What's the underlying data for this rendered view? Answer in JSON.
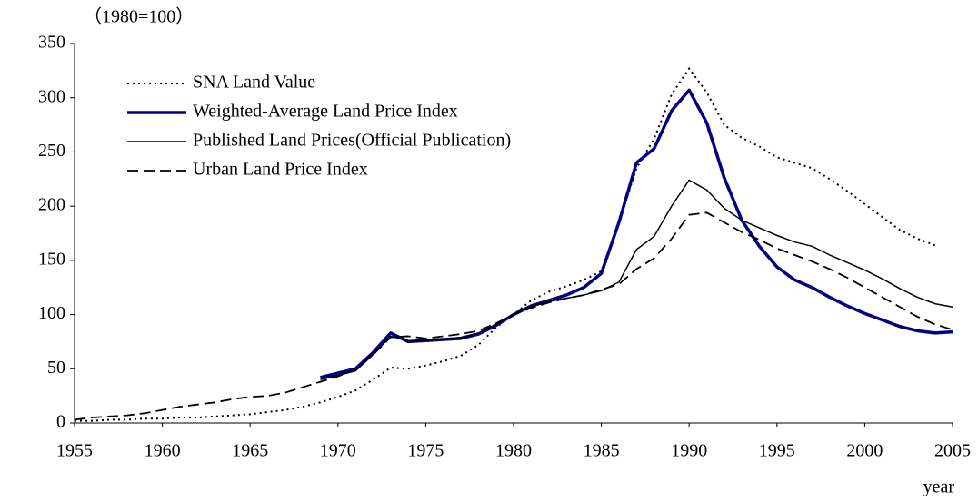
{
  "chart_data": {
    "type": "line",
    "ylabel": "（1980=100）",
    "xlabel": "year",
    "x": [
      1955,
      1956,
      1957,
      1958,
      1959,
      1960,
      1961,
      1962,
      1963,
      1964,
      1965,
      1966,
      1967,
      1968,
      1969,
      1970,
      1971,
      1972,
      1973,
      1974,
      1975,
      1976,
      1977,
      1978,
      1979,
      1980,
      1981,
      1982,
      1983,
      1984,
      1985,
      1986,
      1987,
      1988,
      1989,
      1990,
      1991,
      1992,
      1993,
      1994,
      1995,
      1996,
      1997,
      1998,
      1999,
      2000,
      2001,
      2002,
      2003,
      2004,
      2005
    ],
    "series": [
      {
        "name": "SNA Land Value",
        "color": "#000000",
        "style": "dotted",
        "linewidth": 2,
        "values": [
          2,
          2,
          3,
          3,
          4,
          4,
          5,
          5,
          6,
          7,
          8,
          10,
          12,
          15,
          19,
          24,
          30,
          40,
          51,
          50,
          53,
          57,
          62,
          72,
          88,
          100,
          113,
          121,
          126,
          132,
          140,
          185,
          235,
          262,
          303,
          327,
          305,
          275,
          263,
          255,
          245,
          240,
          235,
          225,
          214,
          202,
          190,
          178,
          170,
          164,
          null
        ]
      },
      {
        "name": "Weighted-Average Land Price Index",
        "color": "#000080",
        "style": "solid",
        "linewidth": 3.5,
        "values": [
          null,
          null,
          null,
          null,
          null,
          null,
          null,
          null,
          null,
          null,
          null,
          null,
          null,
          null,
          42,
          46,
          50,
          65,
          83,
          75,
          76,
          77,
          78,
          82,
          90,
          100,
          108,
          113,
          118,
          125,
          138,
          185,
          240,
          253,
          288,
          307,
          277,
          226,
          187,
          163,
          144,
          132,
          125,
          116,
          108,
          101,
          95,
          89,
          85,
          83,
          84
        ]
      },
      {
        "name": "Published Land Prices(Official Publication)",
        "color": "#000000",
        "style": "solid",
        "linewidth": 1.5,
        "values": [
          null,
          null,
          null,
          null,
          null,
          null,
          null,
          null,
          null,
          null,
          null,
          null,
          null,
          null,
          40,
          44,
          48,
          63,
          80,
          76,
          76,
          77,
          79,
          83,
          91,
          100,
          107,
          112,
          115,
          118,
          122,
          130,
          160,
          172,
          200,
          224,
          215,
          198,
          187,
          180,
          173,
          167,
          163,
          155,
          148,
          141,
          133,
          124,
          116,
          110,
          107
        ]
      },
      {
        "name": "Urban Land Price Index",
        "color": "#000000",
        "style": "dashed",
        "linewidth": 1.8,
        "values": [
          3,
          5,
          6,
          7,
          9,
          12,
          15,
          17,
          19,
          22,
          24,
          25,
          28,
          33,
          38,
          43,
          49,
          63,
          79,
          80,
          78,
          80,
          82,
          85,
          92,
          100,
          106,
          111,
          115,
          118,
          123,
          128,
          142,
          152,
          170,
          192,
          194,
          185,
          176,
          169,
          161,
          155,
          149,
          142,
          134,
          125,
          116,
          107,
          98,
          91,
          86
        ]
      }
    ],
    "xlim": [
      1955,
      2005
    ],
    "xticks": [
      1955,
      1960,
      1965,
      1970,
      1975,
      1980,
      1985,
      1990,
      1995,
      2000,
      2005
    ],
    "ylim": [
      0,
      350
    ],
    "yticks": [
      0,
      50,
      100,
      150,
      200,
      250,
      300,
      350
    ],
    "grid": false,
    "legend": "upper left"
  }
}
